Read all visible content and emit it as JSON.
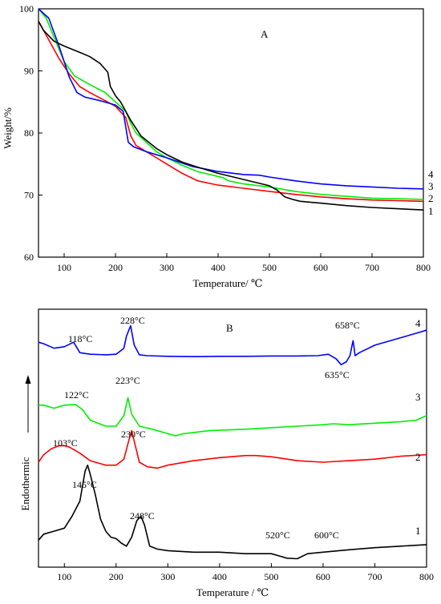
{
  "chart_data": [
    {
      "type": "line",
      "panel_label": "A",
      "xlabel": "Temperature/ ℃",
      "ylabel": "Weight/%",
      "xlim": [
        50,
        800
      ],
      "ylim": [
        60,
        100
      ],
      "x_ticks": [
        100,
        200,
        300,
        400,
        500,
        600,
        700,
        800
      ],
      "y_ticks": [
        60,
        70,
        80,
        90,
        100
      ],
      "grid": false,
      "series": [
        {
          "name": "1",
          "color": "#ff0000",
          "x": [
            50,
            70,
            90,
            110,
            130,
            150,
            180,
            200,
            220,
            230,
            240,
            260,
            280,
            300,
            330,
            360,
            400,
            450,
            500,
            550,
            600,
            650,
            700,
            750,
            800
          ],
          "y": [
            98,
            95,
            92,
            89.5,
            87.5,
            86.5,
            85.2,
            84.3,
            82.5,
            79.5,
            78,
            77,
            76,
            75,
            73.5,
            72.3,
            71.6,
            71.1,
            70.6,
            70.1,
            69.7,
            69.4,
            69.2,
            69.1,
            69
          ]
        },
        {
          "name": "2",
          "color": "#00ee00",
          "x": [
            50,
            65,
            80,
            100,
            120,
            150,
            180,
            200,
            220,
            230,
            240,
            260,
            280,
            300,
            330,
            360,
            400,
            410,
            420,
            450,
            500,
            550,
            600,
            650,
            700,
            750,
            800
          ],
          "y": [
            100,
            98.5,
            95.5,
            91.5,
            89.2,
            87.8,
            86.5,
            85,
            83.5,
            81.5,
            80,
            78.5,
            77,
            76,
            74.8,
            73.8,
            73,
            72.8,
            72.3,
            71.8,
            71.3,
            70.6,
            70.1,
            69.8,
            69.5,
            69.4,
            69.3
          ]
        },
        {
          "name": "3",
          "color": "#0000ff",
          "x": [
            50,
            70,
            90,
            110,
            125,
            140,
            170,
            200,
            215,
            225,
            235,
            260,
            300,
            350,
            400,
            450,
            480,
            500,
            550,
            600,
            650,
            700,
            750,
            800
          ],
          "y": [
            100,
            98.5,
            94,
            89,
            86.5,
            85.8,
            85.2,
            84.5,
            83.5,
            78.5,
            77.8,
            77,
            76,
            74.6,
            73.8,
            73.3,
            73.2,
            72.9,
            72.3,
            71.8,
            71.5,
            71.3,
            71.1,
            71
          ]
        },
        {
          "name": "4",
          "color": "#000000",
          "x": [
            50,
            60,
            80,
            100,
            130,
            150,
            170,
            185,
            190,
            200,
            210,
            230,
            250,
            280,
            300,
            330,
            360,
            400,
            450,
            500,
            515,
            530,
            545,
            560,
            600,
            650,
            700,
            750,
            800
          ],
          "y": [
            98,
            96.5,
            94.8,
            94,
            93,
            92.3,
            91.2,
            89.8,
            87.5,
            86,
            85,
            82,
            79.5,
            77.5,
            76.5,
            75.3,
            74.5,
            73.5,
            72.5,
            71.5,
            70.8,
            69.7,
            69.3,
            69,
            68.7,
            68.3,
            68,
            67.8,
            67.6
          ]
        }
      ],
      "end_labels": [
        "4",
        "3",
        "2",
        "1"
      ]
    },
    {
      "type": "line",
      "panel_label": "B",
      "xlabel": "Temperature / ℃",
      "ylabel": "Endothermic",
      "xlim": [
        50,
        800
      ],
      "x_ticks": [
        100,
        200,
        300,
        400,
        500,
        600,
        700,
        800
      ],
      "y_ticks_shown": false,
      "grid": false,
      "series": [
        {
          "name": "1",
          "color": "#000000",
          "x": [
            50,
            60,
            80,
            100,
            115,
            130,
            140,
            145,
            150,
            160,
            170,
            180,
            190,
            200,
            210,
            220,
            230,
            240,
            248,
            255,
            265,
            280,
            300,
            350,
            400,
            450,
            500,
            520,
            530,
            550,
            570,
            600,
            650,
            700,
            750,
            800
          ],
          "y": [
            -7.1,
            -6.9,
            -6.8,
            -6.7,
            -6.3,
            -5.8,
            -4.8,
            -4.6,
            -4.9,
            -5.6,
            -6.4,
            -6.8,
            -7.0,
            -7.05,
            -7.2,
            -7.3,
            -7.0,
            -6.45,
            -6.3,
            -6.6,
            -7.3,
            -7.4,
            -7.45,
            -7.5,
            -7.5,
            -7.55,
            -7.55,
            -7.65,
            -7.7,
            -7.72,
            -7.55,
            -7.5,
            -7.42,
            -7.35,
            -7.3,
            -7.25
          ]
        },
        {
          "name": "2",
          "color": "#ff0000",
          "x": [
            50,
            60,
            75,
            90,
            100,
            110,
            130,
            150,
            180,
            200,
            215,
            225,
            230,
            235,
            245,
            260,
            280,
            300,
            350,
            400,
            450,
            470,
            500,
            550,
            600,
            650,
            700,
            750,
            800
          ],
          "y": [
            -4.5,
            -4.25,
            -4.05,
            -3.95,
            -3.95,
            -4.0,
            -4.2,
            -4.45,
            -4.6,
            -4.6,
            -4.4,
            -3.75,
            -3.45,
            -3.8,
            -4.5,
            -4.65,
            -4.7,
            -4.6,
            -4.45,
            -4.35,
            -4.28,
            -4.28,
            -4.32,
            -4.45,
            -4.5,
            -4.45,
            -4.4,
            -4.3,
            -4.25
          ]
        },
        {
          "name": "3",
          "color": "#00ee00",
          "x": [
            50,
            60,
            80,
            100,
            122,
            135,
            150,
            180,
            200,
            215,
            223,
            230,
            245,
            270,
            300,
            315,
            330,
            380,
            450,
            500,
            550,
            600,
            620,
            650,
            700,
            750,
            780,
            800
          ],
          "y": [
            -2.6,
            -2.6,
            -2.7,
            -2.6,
            -2.58,
            -2.75,
            -3.1,
            -3.3,
            -3.3,
            -2.95,
            -2.35,
            -2.9,
            -3.3,
            -3.4,
            -3.55,
            -3.62,
            -3.55,
            -3.45,
            -3.4,
            -3.35,
            -3.3,
            -3.25,
            -3.22,
            -3.25,
            -3.2,
            -3.15,
            -3.1,
            -2.95
          ]
        },
        {
          "name": "4",
          "color": "#0000ff",
          "x": [
            50,
            60,
            80,
            100,
            118,
            130,
            150,
            180,
            200,
            215,
            220,
            228,
            235,
            245,
            260,
            300,
            350,
            400,
            450,
            500,
            550,
            590,
            610,
            625,
            635,
            645,
            652,
            656,
            658,
            662,
            670,
            700,
            750,
            780,
            800
          ],
          "y": [
            -0.5,
            -0.55,
            -0.7,
            -0.65,
            -0.5,
            -0.85,
            -0.9,
            -0.92,
            -0.9,
            -0.7,
            -0.3,
            0.05,
            -0.6,
            -0.92,
            -0.95,
            -0.97,
            -0.98,
            -0.97,
            -0.97,
            -0.96,
            -0.96,
            -0.95,
            -0.9,
            -1.05,
            -1.25,
            -1.15,
            -0.95,
            -0.6,
            -0.45,
            -0.95,
            -0.85,
            -0.6,
            -0.35,
            -0.2,
            -0.1
          ]
        }
      ],
      "annotations": [
        "228°C",
        "118°C",
        "658°C",
        "635°C",
        "223°C",
        "122°C",
        "103°C",
        "230°C",
        "145°C",
        "248°C",
        "520°C",
        "600°C"
      ],
      "end_labels": [
        "4",
        "3",
        "2",
        "1"
      ]
    }
  ]
}
